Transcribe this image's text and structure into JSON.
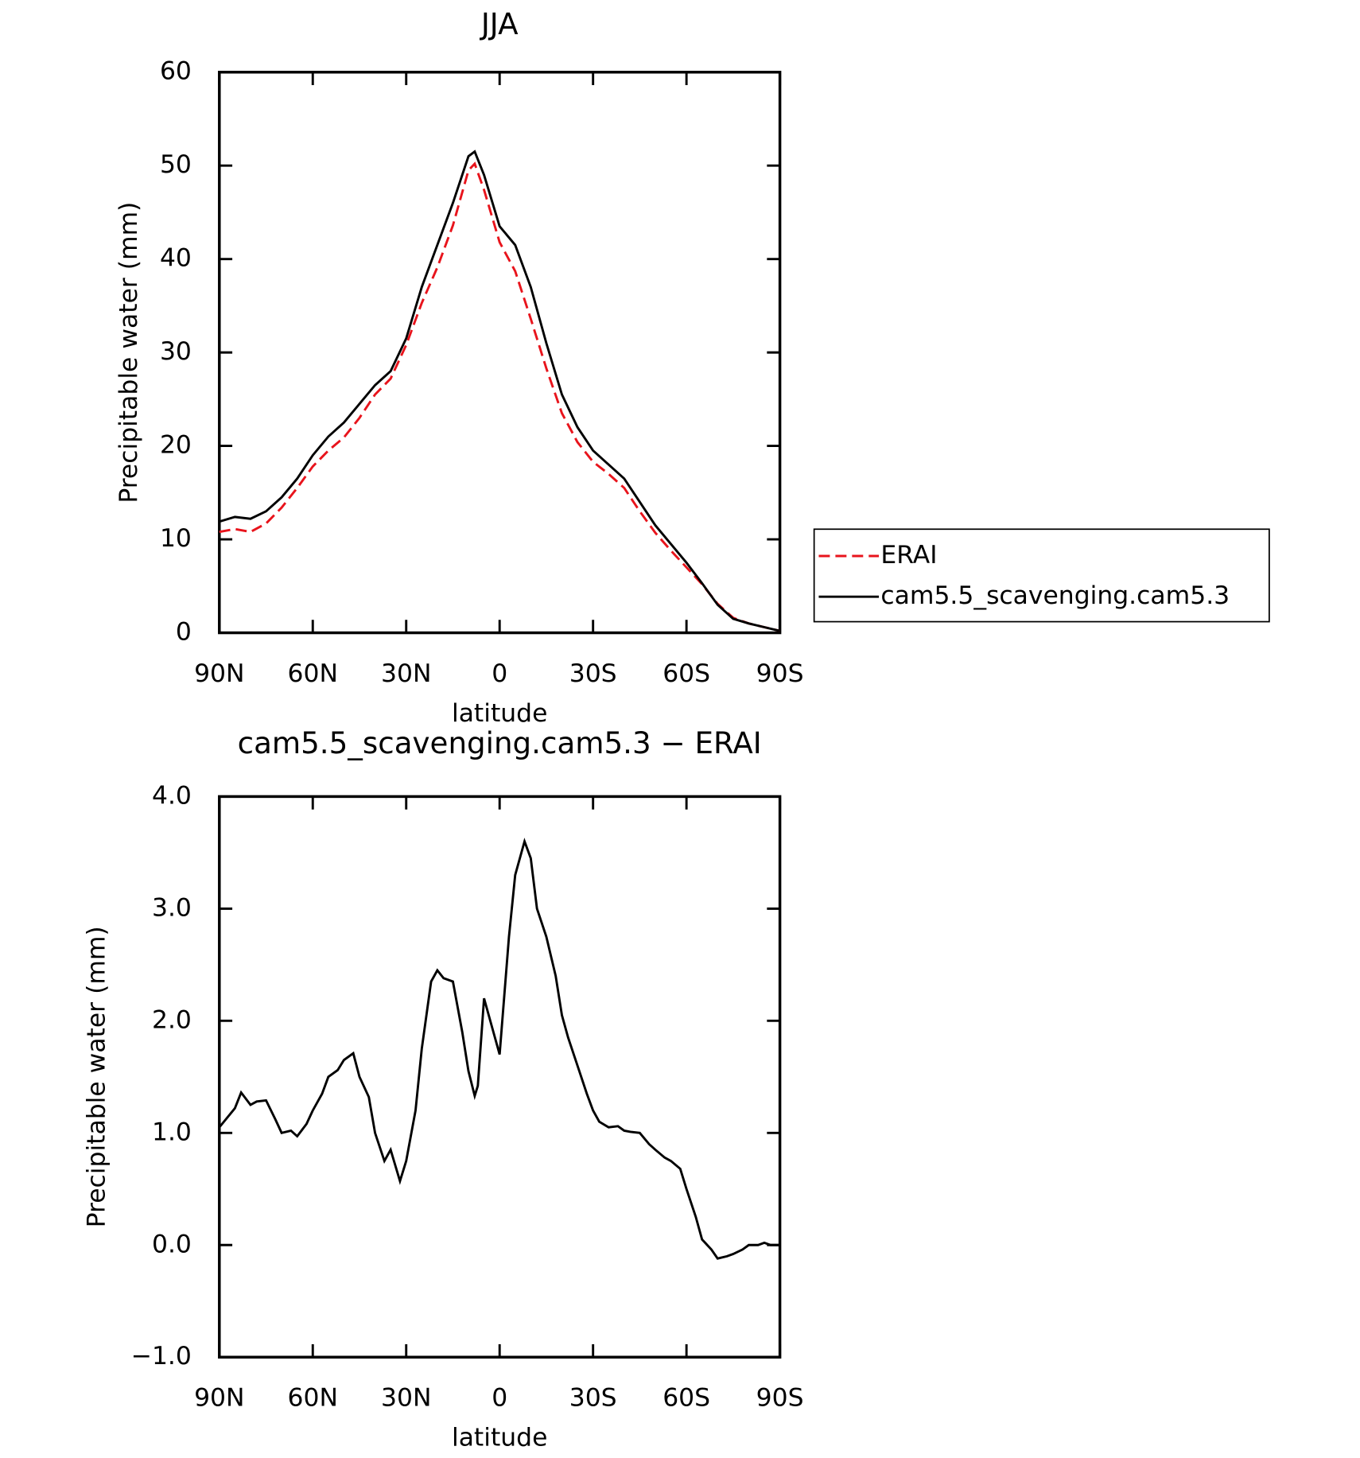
{
  "chart_data": [
    {
      "type": "line",
      "title": "JJA",
      "xlabel": "latitude",
      "ylabel": "Precipitable water (mm)",
      "x": [
        90,
        85,
        80,
        75,
        70,
        65,
        60,
        55,
        50,
        45,
        40,
        35,
        30,
        25,
        20,
        15,
        10,
        8,
        5,
        0,
        -5,
        -10,
        -15,
        -20,
        -25,
        -30,
        -35,
        -40,
        -45,
        -50,
        -55,
        -60,
        -65,
        -70,
        -75,
        -80,
        -85,
        -90
      ],
      "series": [
        {
          "name": "ERAI",
          "color": "#e8141c",
          "linestyle": "dashed",
          "values": [
            10.8,
            11.1,
            10.8,
            11.7,
            13.4,
            15.5,
            17.8,
            19.5,
            20.9,
            23,
            25.5,
            27.2,
            30.8,
            35.3,
            39.1,
            43.6,
            49.5,
            50.2,
            47.4,
            41.8,
            38.7,
            33.6,
            28.3,
            23.5,
            20.4,
            18.3,
            17,
            15.5,
            13,
            10.7,
            8.8,
            7,
            5.2,
            3.1,
            1.6,
            1,
            0.6,
            0.2
          ]
        },
        {
          "name": "cam5.5_scavenging.cam5.3",
          "color": "#000000",
          "linestyle": "solid",
          "values": [
            11.9,
            12.4,
            12.2,
            13,
            14.5,
            16.5,
            19,
            21,
            22.5,
            24.5,
            26.5,
            28,
            31.5,
            37,
            41.5,
            46,
            51,
            51.5,
            49,
            43.5,
            41.5,
            37,
            31,
            25.5,
            22,
            19.5,
            18,
            16.5,
            14,
            11.5,
            9.5,
            7.5,
            5.3,
            3,
            1.5,
            1,
            0.6,
            0.2
          ]
        }
      ],
      "xlim": [
        90,
        -90
      ],
      "xticks": [
        {
          "value": 90,
          "label": "90N"
        },
        {
          "value": 60,
          "label": "60N"
        },
        {
          "value": 30,
          "label": "30N"
        },
        0,
        {
          "value": -30,
          "label": "30S"
        },
        {
          "value": -60,
          "label": "60S"
        },
        {
          "value": -90,
          "label": "90S"
        }
      ],
      "ylim": [
        0,
        60
      ],
      "yticks": [
        0,
        10,
        20,
        30,
        40,
        50,
        60
      ],
      "legend": "right"
    },
    {
      "type": "line",
      "title": "cam5.5_scavenging.cam5.3 − ERAI",
      "xlabel": "latitude",
      "ylabel": "Precipitable water (mm)",
      "x": [
        90,
        85,
        83,
        80,
        78,
        75,
        72,
        70,
        67,
        65,
        62,
        60,
        57,
        55,
        52,
        50,
        47,
        45,
        42,
        40,
        37,
        35,
        32,
        30,
        27,
        25,
        22,
        20,
        18,
        15,
        12,
        10,
        8,
        7,
        5,
        3,
        0,
        -3,
        -5,
        -8,
        -10,
        -12,
        -15,
        -18,
        -20,
        -22,
        -25,
        -28,
        -30,
        -32,
        -35,
        -38,
        -40,
        -42,
        -45,
        -48,
        -50,
        -53,
        -55,
        -58,
        -60,
        -63,
        -65,
        -68,
        -70,
        -73,
        -75,
        -78,
        -80,
        -83,
        -85,
        -87,
        -90
      ],
      "values": [
        1.05,
        1.22,
        1.36,
        1.25,
        1.28,
        1.29,
        1.12,
        1.0,
        1.02,
        0.97,
        1.08,
        1.2,
        1.35,
        1.5,
        1.56,
        1.65,
        1.71,
        1.5,
        1.32,
        1.0,
        0.75,
        0.85,
        0.57,
        0.75,
        1.2,
        1.75,
        2.35,
        2.45,
        2.38,
        2.35,
        1.9,
        1.55,
        1.33,
        1.42,
        2.2,
        2.0,
        1.7,
        2.75,
        3.3,
        3.6,
        3.45,
        3.0,
        2.75,
        2.4,
        2.05,
        1.85,
        1.6,
        1.35,
        1.2,
        1.1,
        1.05,
        1.06,
        1.02,
        1.01,
        1.0,
        0.9,
        0.85,
        0.78,
        0.75,
        0.68,
        0.5,
        0.25,
        0.05,
        -0.04,
        -0.12,
        -0.1,
        -0.08,
        -0.04,
        0.0,
        0.0,
        0.02,
        0.0,
        0.0
      ],
      "color": "#000000",
      "xlim": [
        90,
        -90
      ],
      "xticks": [
        {
          "value": 90,
          "label": "90N"
        },
        {
          "value": 60,
          "label": "60N"
        },
        {
          "value": 30,
          "label": "30N"
        },
        0,
        {
          "value": -30,
          "label": "30S"
        },
        {
          "value": -60,
          "label": "60S"
        },
        {
          "value": -90,
          "label": "90S"
        }
      ],
      "ylim": [
        -1,
        4
      ],
      "yticks": [
        {
          "value": -1,
          "label": "−1.0"
        },
        {
          "value": 0,
          "label": "0.0"
        },
        {
          "value": 1,
          "label": "1.0"
        },
        {
          "value": 2,
          "label": "2.0"
        },
        {
          "value": 3,
          "label": "3.0"
        },
        {
          "value": 4,
          "label": "4.0"
        }
      ]
    }
  ]
}
